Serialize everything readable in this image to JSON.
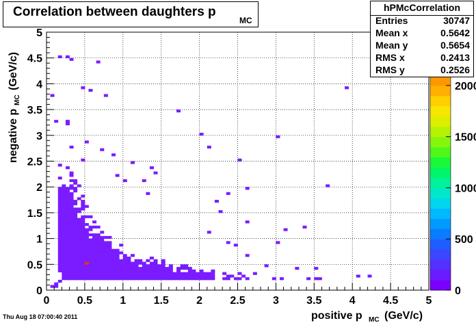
{
  "title": {
    "main": "Correlation between daughters p",
    "subscript": "MC"
  },
  "stats": {
    "name": "hPMcCorrelation",
    "rows": [
      {
        "label": "Entries",
        "value": "30747"
      },
      {
        "label": "Mean x",
        "value": "0.5642"
      },
      {
        "label": "Mean y",
        "value": "0.5654"
      },
      {
        "label": "RMS x",
        "value": "0.2413"
      },
      {
        "label": "RMS y",
        "value": "0.2526"
      }
    ]
  },
  "timestamp": "Thu Aug 18 07:00:40 2011",
  "colors": {
    "low_bin": "#7a1cff",
    "hot_bin": "#e8321e",
    "grid": "#000000"
  },
  "chart_data": {
    "type": "heatmap",
    "xlabel": "positive p",
    "xlabel_sub": "MC",
    "xlabel_unit": "(GeV/c)",
    "ylabel": "negative p",
    "ylabel_sub": "MC",
    "ylabel_unit": "(GeV/c)",
    "xlim": [
      0,
      5
    ],
    "ylim": [
      0,
      5
    ],
    "bins_x": 100,
    "bins_y": 100,
    "grid": true,
    "x_ticks": [
      "0",
      "0.5",
      "1",
      "1.5",
      "2",
      "2.5",
      "3",
      "3.5",
      "4",
      "4.5",
      "5"
    ],
    "y_ticks": [
      "0",
      "0.5",
      "1",
      "1.5",
      "2",
      "2.5",
      "3",
      "3.5",
      "4",
      "4.5",
      "5"
    ],
    "palette_ticks": [
      "0",
      "500",
      "1000",
      "1500",
      "2000"
    ],
    "z_max": 2100,
    "z_scale": "linear",
    "hot_bin": [
      0.52,
      0.52
    ],
    "density_band": {
      "inner_edge": 0.06,
      "outer_edge": 0.9,
      "x_min": 0.15,
      "x_max": 2.6
    },
    "sparse_points": [
      [
        0.18,
        4.5
      ],
      [
        0.33,
        4.47
      ],
      [
        0.65,
        4.4
      ],
      [
        0.45,
        3.9
      ],
      [
        0.55,
        3.85
      ],
      [
        0.78,
        3.8
      ],
      [
        3.92,
        3.92
      ],
      [
        1.7,
        3.45
      ],
      [
        0.08,
        3.75
      ],
      [
        0.1,
        3.3
      ],
      [
        0.3,
        3.3
      ],
      [
        0.25,
        3.2
      ],
      [
        2.0,
        3.05
      ],
      [
        1.1,
        2.45
      ],
      [
        1.35,
        2.4
      ],
      [
        1.45,
        2.3
      ],
      [
        2.1,
        2.8
      ],
      [
        2.5,
        2.55
      ],
      [
        3.05,
        2.95
      ],
      [
        3.65,
        2.02
      ],
      [
        2.35,
        1.9
      ],
      [
        2.6,
        1.95
      ],
      [
        2.2,
        1.7
      ],
      [
        1.3,
        1.9
      ],
      [
        2.6,
        1.3
      ],
      [
        3.35,
        1.22
      ],
      [
        3.1,
        1.18
      ],
      [
        3.0,
        0.95
      ],
      [
        3.5,
        0.4
      ],
      [
        4.1,
        0.3
      ],
      [
        4.2,
        0.3
      ],
      [
        3.25,
        0.4
      ],
      [
        0.1,
        0.08
      ],
      [
        0.15,
        0.15
      ],
      [
        0.2,
        0.2
      ],
      [
        0.3,
        0.28
      ],
      [
        2.85,
        0.48
      ],
      [
        2.6,
        0.68
      ],
      [
        2.45,
        0.85
      ],
      [
        2.35,
        0.95
      ],
      [
        1.0,
        2.1
      ],
      [
        0.95,
        2.2
      ],
      [
        0.72,
        2.7
      ],
      [
        0.88,
        2.6
      ],
      [
        0.5,
        2.9
      ],
      [
        0.32,
        2.75
      ],
      [
        0.45,
        2.55
      ],
      [
        1.25,
        2.1
      ],
      [
        0.25,
        4.55
      ],
      [
        2.3,
        1.5
      ],
      [
        2.15,
        1.15
      ]
    ],
    "seed": 20110818
  }
}
